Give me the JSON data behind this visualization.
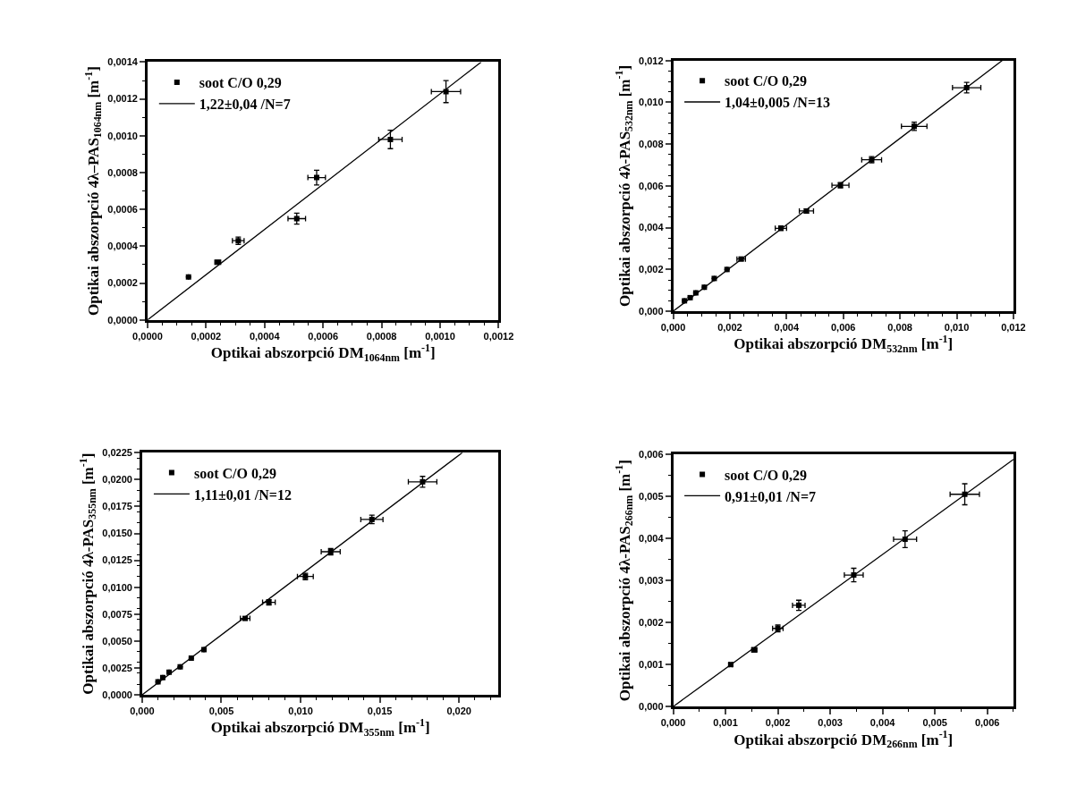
{
  "chart_data": [
    {
      "type": "scatter",
      "xlabel": "Optikai abszorpció DM$_{1064nm}$ [m$^{-1}$]",
      "ylabel": "Optikai abszorpció 4λ–PAS$_{1064nm}$ [m$^{-1}$]",
      "xlim": [
        0,
        0.0012
      ],
      "ylim": [
        0,
        0.0014
      ],
      "xticks": [
        {
          "value": 0,
          "label": "0,0000"
        },
        {
          "value": 0.0002,
          "label": "0,0002"
        },
        {
          "value": 0.0004,
          "label": "0,0004"
        },
        {
          "value": 0.0006,
          "label": "0,0006"
        },
        {
          "value": 0.0008,
          "label": "0,0008"
        },
        {
          "value": 0.001,
          "label": "0,0010"
        },
        {
          "value": 0.0012,
          "label": "0,0012"
        }
      ],
      "yticks": [
        {
          "value": 0,
          "label": "0,0000"
        },
        {
          "value": 0.0002,
          "label": "0,0002"
        },
        {
          "value": 0.0004,
          "label": "0,0004"
        },
        {
          "value": 0.0006,
          "label": "0,0006"
        },
        {
          "value": 0.0008,
          "label": "0,0008"
        },
        {
          "value": 0.001,
          "label": "0,0010"
        },
        {
          "value": 0.0012,
          "label": "0,0012"
        },
        {
          "value": 0.0014,
          "label": "0,0014"
        }
      ],
      "legend": "top left",
      "series": [
        {
          "name": "soot C/O 0,29",
          "marker": "square",
          "color": "#000000",
          "x": [
            0.00014,
            0.00024,
            0.00031,
            0.00051,
            0.000578,
            0.00083,
            0.00102
          ],
          "values": [
            0.000233,
            0.000313,
            0.00043,
            0.00055,
            0.000773,
            0.00098,
            0.00124
          ],
          "errors": [
            null,
            1e-05,
            2e-05,
            3e-05,
            4e-05,
            5e-05,
            6e-05
          ],
          "xerrors": [
            null,
            1e-05,
            2e-05,
            3e-05,
            3e-05,
            4e-05,
            5e-05
          ]
        },
        {
          "type": "line",
          "name": "1,22±0,04 /N=7",
          "color": "#000000",
          "x": [
            0,
            0.00114
          ],
          "values": [
            0,
            0.0014
          ]
        }
      ]
    },
    {
      "type": "scatter",
      "xlabel": "Optikai abszorpció DM$_{532nm}$ [m$^{-1}$]",
      "ylabel": "Optikai abszorpció 4λ-PAS$_{532nm}$ [m$^{-1}$]",
      "xlim": [
        0,
        0.012
      ],
      "ylim": [
        0,
        0.012
      ],
      "xticks": [
        {
          "value": 0,
          "label": "0,000"
        },
        {
          "value": 0.002,
          "label": "0,002"
        },
        {
          "value": 0.004,
          "label": "0,004"
        },
        {
          "value": 0.006,
          "label": "0,006"
        },
        {
          "value": 0.008,
          "label": "0,008"
        },
        {
          "value": 0.01,
          "label": "0,010"
        },
        {
          "value": 0.012,
          "label": "0,012"
        }
      ],
      "yticks": [
        {
          "value": 0,
          "label": "0,000"
        },
        {
          "value": 0.002,
          "label": "0,002"
        },
        {
          "value": 0.004,
          "label": "0,004"
        },
        {
          "value": 0.006,
          "label": "0,006"
        },
        {
          "value": 0.008,
          "label": "0,008"
        },
        {
          "value": 0.01,
          "label": "0,010"
        },
        {
          "value": 0.012,
          "label": "0,012"
        }
      ],
      "legend": "top left",
      "series": [
        {
          "name": "soot C/O 0,29",
          "marker": "square",
          "color": "#000000",
          "x": [
            0.0004,
            0.0006,
            0.0008,
            0.0011,
            0.00145,
            0.0019,
            0.0024,
            0.0038,
            0.0047,
            0.0059,
            0.007,
            0.0085,
            0.01035
          ],
          "values": [
            0.0005,
            0.00065,
            0.00088,
            0.00115,
            0.00157,
            0.002,
            0.0025,
            0.00397,
            0.0048,
            0.00603,
            0.00725,
            0.00885,
            0.0107
          ],
          "errors": [
            null,
            null,
            null,
            null,
            null,
            null,
            8e-05,
            0.0001,
            0.0001,
            0.00013,
            0.00015,
            0.0002,
            0.00025
          ],
          "xerrors": [
            null,
            null,
            null,
            null,
            null,
            null,
            0.00015,
            0.0002,
            0.00025,
            0.0003,
            0.00035,
            0.00045,
            0.0005
          ]
        },
        {
          "type": "line",
          "name": "1,04±0,005 /N=13",
          "color": "#000000",
          "x": [
            0,
            0.0116
          ],
          "values": [
            0,
            0.012
          ]
        }
      ]
    },
    {
      "type": "scatter",
      "xlabel": "Optikai abszorpció DM$_{355nm}$ [m$^{-1}$]",
      "ylabel": "Optikai abszorpció 4λ-PAS$_{355nm}$ [m$^{-1}$]",
      "xlim": [
        0,
        0.0225
      ],
      "ylim": [
        0,
        0.0225
      ],
      "xticks": [
        {
          "value": 0,
          "label": "0,000"
        },
        {
          "value": 0.005,
          "label": "0,005"
        },
        {
          "value": 0.01,
          "label": "0,010"
        },
        {
          "value": 0.015,
          "label": "0,015"
        },
        {
          "value": 0.02,
          "label": "0,020"
        }
      ],
      "yticks": [
        {
          "value": 0,
          "label": "0,0000"
        },
        {
          "value": 0.0025,
          "label": "0,0025"
        },
        {
          "value": 0.005,
          "label": "0,0050"
        },
        {
          "value": 0.0075,
          "label": "0,0075"
        },
        {
          "value": 0.01,
          "label": "0,0100"
        },
        {
          "value": 0.0125,
          "label": "0,0125"
        },
        {
          "value": 0.015,
          "label": "0,0150"
        },
        {
          "value": 0.0175,
          "label": "0,0175"
        },
        {
          "value": 0.02,
          "label": "0,0200"
        },
        {
          "value": 0.0225,
          "label": "0,0225"
        }
      ],
      "legend": "top left",
      "series": [
        {
          "name": "soot C/O 0,29",
          "marker": "square",
          "color": "#000000",
          "x": [
            0.001,
            0.0013,
            0.0017,
            0.0024,
            0.0031,
            0.0039,
            0.0065,
            0.008,
            0.0103,
            0.0119,
            0.0145,
            0.0177
          ],
          "values": [
            0.0012,
            0.0016,
            0.0021,
            0.0026,
            0.0034,
            0.0042,
            0.0071,
            0.0086,
            0.011,
            0.0133,
            0.0163,
            0.0198
          ],
          "errors": [
            null,
            null,
            null,
            null,
            null,
            null,
            0.00015,
            0.00025,
            0.0003,
            0.0003,
            0.0004,
            0.0005
          ],
          "xerrors": [
            null,
            null,
            null,
            null,
            null,
            null,
            0.0003,
            0.0004,
            0.0005,
            0.0006,
            0.0007,
            0.0009
          ]
        },
        {
          "type": "line",
          "name": "1,11±0,01 /N=12",
          "color": "#000000",
          "x": [
            0,
            0.0202
          ],
          "values": [
            0,
            0.0225
          ]
        }
      ]
    },
    {
      "type": "scatter",
      "xlabel": "Optikai abszorpció DM$_{266nm}$ [m$^{-1}$]",
      "ylabel": "Optikai abszorpció 4λ-PAS$_{266nm}$ [m$^{-1}$]",
      "xlim": [
        0,
        0.0065
      ],
      "ylim": [
        0,
        0.006
      ],
      "xticks": [
        {
          "value": 0,
          "label": "0,000"
        },
        {
          "value": 0.001,
          "label": "0,001"
        },
        {
          "value": 0.002,
          "label": "0,002"
        },
        {
          "value": 0.003,
          "label": "0,003"
        },
        {
          "value": 0.004,
          "label": "0,004"
        },
        {
          "value": 0.005,
          "label": "0,005"
        },
        {
          "value": 0.006,
          "label": "0,006"
        }
      ],
      "yticks": [
        {
          "value": 0,
          "label": "0,000"
        },
        {
          "value": 0.001,
          "label": "0,001"
        },
        {
          "value": 0.002,
          "label": "0,002"
        },
        {
          "value": 0.003,
          "label": "0,003"
        },
        {
          "value": 0.004,
          "label": "0,004"
        },
        {
          "value": 0.005,
          "label": "0,005"
        },
        {
          "value": 0.006,
          "label": "0,006"
        }
      ],
      "legend": "top left",
      "series": [
        {
          "name": "soot C/O 0,29",
          "marker": "square",
          "color": "#000000",
          "x": [
            0.0011,
            0.00155,
            0.002,
            0.0024,
            0.00345,
            0.00443,
            0.00557
          ],
          "values": [
            0.001,
            0.00135,
            0.00186,
            0.00241,
            0.00313,
            0.00398,
            0.00505
          ],
          "errors": [
            3e-05,
            5e-05,
            8e-05,
            0.00012,
            0.00016,
            0.0002,
            0.00025
          ],
          "xerrors": [
            3e-05,
            5e-05,
            0.0001,
            0.00012,
            0.00018,
            0.00022,
            0.00028
          ]
        },
        {
          "type": "line",
          "name": "0,91±0,01 /N=7",
          "color": "#000000",
          "x": [
            0,
            0.0065
          ],
          "values": [
            0,
            0.00588
          ]
        }
      ]
    }
  ]
}
